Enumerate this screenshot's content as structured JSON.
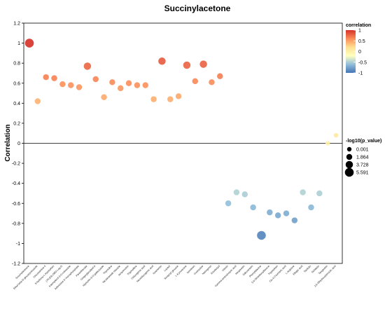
{
  "chart_data": {
    "type": "scatter",
    "title": "Succinylacetone",
    "xlabel": "",
    "ylabel": "Correlation",
    "ylim": [
      -1.2,
      1.2
    ],
    "yticks": [
      "1.2",
      "1",
      "0.8",
      "0.6",
      "0.4",
      "0.2",
      "0",
      "-0.2",
      "-0.4",
      "-0.6",
      "-0.8",
      "-1",
      "-1.2"
    ],
    "grid": false,
    "zero_line": true,
    "categories": [
      "Succinylacetone",
      "Ethyl beta-D-glucopyranoside",
      "Glucosamine 6",
      "5-hydroxy-L-tryptophan",
      "(7R,8S)-DBD-Log-D",
      "Kaempferol-3-O-rutinoside",
      "Adenosine 5'-monophosphate",
      "Pantothenate",
      "Gingerglycolipid A",
      "Myricetin-3-O-galactoside",
      "Thymidine",
      "Nicotinamide riboside",
      "Isoquercitrin",
      "Trigonelline",
      "Chlorogenic acid",
      "Neochlorogenic acid",
      "Isoorientin",
      "Lupeol",
      "Sinapoyl glucose",
      "L-Kynurenine",
      "Isovitexin",
      "Guanosine",
      "Naringenin",
      "Eriodictyol",
      "Vitexin",
      "Gamma-aminobutyric acid",
      "Hesperetin",
      "Sakuranetin",
      "Phenylalanine",
      "5,6-Dimethoxyflavone",
      "Tryptophan",
      "Cis-4-Coumaric acid",
      "L-Arginine",
      "Ellagic acid",
      "Taxifolin",
      "Nobiletin",
      "Tangeretin",
      "2,5-Dihydroxybenzoic acid"
    ],
    "y": [
      1.0,
      0.42,
      0.66,
      0.65,
      0.59,
      0.58,
      0.56,
      0.77,
      0.64,
      0.46,
      0.61,
      0.55,
      0.6,
      0.58,
      0.58,
      0.44,
      0.82,
      0.44,
      0.47,
      0.78,
      0.62,
      0.79,
      0.61,
      0.67,
      -0.6,
      -0.49,
      -0.51,
      -0.64,
      -0.92,
      -0.69,
      -0.72,
      -0.7,
      -0.77,
      -0.49,
      -0.64,
      -0.5,
      0.0,
      0.08
    ],
    "log10_p": [
      5.591,
      1.864,
      1.864,
      1.864,
      1.864,
      1.864,
      1.864,
      3.728,
      1.864,
      1.864,
      1.864,
      1.864,
      1.864,
      1.864,
      1.864,
      1.864,
      3.728,
      1.864,
      1.864,
      3.728,
      1.864,
      3.728,
      1.864,
      1.864,
      1.864,
      1.864,
      1.864,
      1.864,
      5.591,
      1.864,
      1.864,
      1.864,
      1.864,
      1.864,
      1.864,
      1.864,
      0.001,
      0.001
    ],
    "color_legend": {
      "title": "correlation",
      "ticks": [
        "1",
        "0.5",
        "0",
        "-0.5",
        "-1"
      ],
      "colors": [
        "#d73027",
        "#fc8d59",
        "#fee090",
        "#ffffbf",
        "#91bfdb",
        "#4575b4"
      ]
    },
    "size_legend": {
      "title": "-log10(p_value)",
      "entries": [
        "0.001",
        "1.864",
        "3.728",
        "5.591"
      ],
      "values": [
        0.001,
        1.864,
        3.728,
        5.591
      ]
    }
  }
}
